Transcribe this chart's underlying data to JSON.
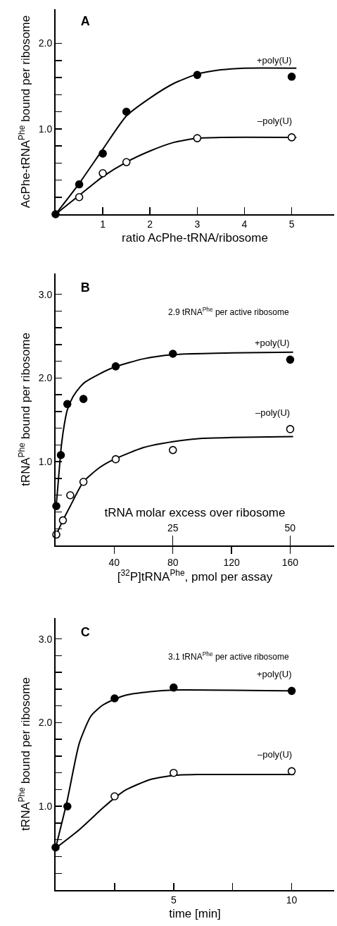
{
  "chart_data": [
    {
      "type": "scatter",
      "title": "A",
      "ylabel": "AcPhe-tRNA$^{Phe}$ bound per ribosome",
      "xlabel": "ratio AcPhe-tRNA/ribosome",
      "xlim": [
        0,
        5.9
      ],
      "xticks": [
        1,
        2,
        3,
        4,
        5
      ],
      "ylim": [
        0,
        2.4
      ],
      "yticks": [
        {
          "value": 0.2,
          "label": null
        },
        {
          "value": 0.4,
          "label": null
        },
        {
          "value": 0.6,
          "label": null
        },
        {
          "value": 0.8,
          "label": null
        },
        {
          "value": 1,
          "label": "1.0"
        },
        {
          "value": 1.2,
          "label": null
        },
        {
          "value": 1.4,
          "label": null
        },
        {
          "value": 1.6,
          "label": null
        },
        {
          "value": 1.8,
          "label": null
        },
        {
          "value": 2,
          "label": "2.0"
        }
      ],
      "grid": false,
      "series": [
        {
          "type": "line",
          "color": "#000000",
          "marker": "none",
          "x": [
            0,
            0.5,
            1,
            1.5,
            2,
            2.5,
            3,
            3.5,
            4,
            5.1
          ],
          "values": [
            0,
            0.36,
            0.76,
            1.15,
            1.36,
            1.53,
            1.64,
            1.69,
            1.71,
            1.71
          ]
        },
        {
          "type": "line",
          "color": "#000000",
          "marker": "none",
          "x": [
            0,
            0.5,
            1,
            1.5,
            2,
            2.5,
            3,
            3.5,
            5.1
          ],
          "values": [
            0,
            0.22,
            0.44,
            0.61,
            0.74,
            0.84,
            0.89,
            0.9,
            0.9
          ]
        },
        {
          "type": "scatter",
          "name": "+poly(U)",
          "color": "#000000",
          "marker": "circle",
          "x": [
            0,
            0.5,
            1,
            1.5,
            3,
            5
          ],
          "values": [
            0,
            0.35,
            0.71,
            1.2,
            1.63,
            1.61
          ]
        },
        {
          "type": "scatter",
          "name": "–poly(U)",
          "color": "#ffffff",
          "marker": "circle",
          "x": [
            0.5,
            1,
            1.5,
            3,
            5
          ],
          "values": [
            0.2,
            0.48,
            0.61,
            0.89,
            0.9
          ]
        }
      ]
    },
    {
      "type": "scatter",
      "title": "B",
      "ylabel": "tRNA$^{Phe}$ bound per ribosome",
      "xlabel": "[$^{32}$P]tRNA$^{Phe}$, pmol per assay",
      "x2label": "tRNA molar excess over ribosome",
      "annotations": [
        "2.9 tRNA$^{Phe}$ per active ribosome"
      ],
      "xlim": [
        0,
        190
      ],
      "xticks": [
        40,
        80,
        120,
        160
      ],
      "x2lim": [
        0,
        59.4
      ],
      "x2ticks": [
        25,
        50
      ],
      "ylim": [
        0,
        3.25
      ],
      "yticks": [
        {
          "value": 0.2,
          "label": null
        },
        {
          "value": 0.4,
          "label": null
        },
        {
          "value": 0.6,
          "label": null
        },
        {
          "value": 0.8,
          "label": null
        },
        {
          "value": 1,
          "label": "1.0"
        },
        {
          "value": 1.2,
          "label": null
        },
        {
          "value": 1.4,
          "label": null
        },
        {
          "value": 1.6,
          "label": null
        },
        {
          "value": 1.8,
          "label": null
        },
        {
          "value": 2,
          "label": "2.0"
        },
        {
          "value": 2.2,
          "label": null
        },
        {
          "value": 2.4,
          "label": null
        },
        {
          "value": 2.6,
          "label": null
        },
        {
          "value": 2.8,
          "label": null
        },
        {
          "value": 3,
          "label": "3.0"
        }
      ],
      "grid": false,
      "series": [
        {
          "type": "line",
          "color": "#000000",
          "marker": "none",
          "x": [
            0.3,
            2,
            4,
            6,
            8,
            12,
            17,
            20,
            30,
            40,
            60,
            80,
            120,
            162
          ],
          "values": [
            0.45,
            0.8,
            1.2,
            1.45,
            1.62,
            1.78,
            1.9,
            1.95,
            2.05,
            2.13,
            2.23,
            2.28,
            2.3,
            2.31
          ]
        },
        {
          "type": "line",
          "color": "#000000",
          "marker": "none",
          "x": [
            0.5,
            5,
            10,
            19,
            30,
            40,
            60,
            80,
            100,
            120,
            162
          ],
          "values": [
            0.13,
            0.3,
            0.47,
            0.76,
            0.93,
            1.03,
            1.17,
            1.24,
            1.28,
            1.29,
            1.3
          ]
        },
        {
          "type": "scatter",
          "name": "+poly(U)",
          "color": "#000000",
          "marker": "circle",
          "x": [
            0.5,
            3.6,
            8,
            19,
            41,
            80,
            160
          ],
          "values": [
            0.47,
            1.08,
            1.69,
            1.75,
            2.14,
            2.29,
            2.22
          ]
        },
        {
          "type": "scatter",
          "name": "–poly(U)",
          "color": "#ffffff",
          "marker": "circle",
          "x": [
            0.5,
            5,
            10,
            19,
            41,
            80,
            160
          ],
          "values": [
            0.13,
            0.3,
            0.6,
            0.76,
            1.03,
            1.14,
            1.39
          ]
        }
      ]
    },
    {
      "type": "scatter",
      "title": "C",
      "ylabel": "tRNA$^{Phe}$ bound per ribosome",
      "xlabel": "time [min]",
      "annotations": [
        "3.1 tRNA$^{Phe}$ per active ribosome"
      ],
      "xlim": [
        0,
        11.8
      ],
      "xticks": [
        {
          "value": 2.5,
          "label": null
        },
        5,
        {
          "value": 7.5,
          "label": null
        },
        10
      ],
      "ylim": [
        0,
        3.25
      ],
      "yticks": [
        {
          "value": 0.2,
          "label": null
        },
        {
          "value": 0.4,
          "label": null
        },
        {
          "value": 0.6,
          "label": null
        },
        {
          "value": 0.8,
          "label": null
        },
        {
          "value": 1,
          "label": "1.0"
        },
        {
          "value": 1.2,
          "label": null
        },
        {
          "value": 1.4,
          "label": null
        },
        {
          "value": 1.6,
          "label": null
        },
        {
          "value": 1.8,
          "label": null
        },
        {
          "value": 2,
          "label": "2.0"
        },
        {
          "value": 2.2,
          "label": null
        },
        {
          "value": 2.4,
          "label": null
        },
        {
          "value": 2.6,
          "label": null
        },
        {
          "value": 2.8,
          "label": null
        },
        {
          "value": 3,
          "label": "3.0"
        }
      ],
      "grid": false,
      "series": [
        {
          "type": "line",
          "color": "#000000",
          "marker": "none",
          "x": [
            0,
            0.5,
            1,
            1.5,
            2,
            2.5,
            3,
            4,
            5,
            10.1
          ],
          "values": [
            0.5,
            1.08,
            1.75,
            2.08,
            2.21,
            2.28,
            2.33,
            2.37,
            2.39,
            2.38
          ]
        },
        {
          "type": "line",
          "color": "#000000",
          "marker": "none",
          "x": [
            0,
            1,
            2,
            2.5,
            3,
            4,
            5,
            6,
            10.1
          ],
          "values": [
            0.5,
            0.72,
            0.98,
            1.1,
            1.2,
            1.32,
            1.37,
            1.38,
            1.38
          ]
        },
        {
          "type": "scatter",
          "name": "+poly(U)",
          "color": "#000000",
          "marker": "circle",
          "x": [
            0,
            0.5,
            2.5,
            5,
            10
          ],
          "values": [
            0.51,
            1,
            2.29,
            2.42,
            2.38
          ]
        },
        {
          "type": "scatter",
          "name": "–poly(U)",
          "color": "#ffffff",
          "marker": "circle",
          "x": [
            2.5,
            5,
            10
          ],
          "values": [
            1.12,
            1.4,
            1.42
          ]
        }
      ]
    }
  ]
}
